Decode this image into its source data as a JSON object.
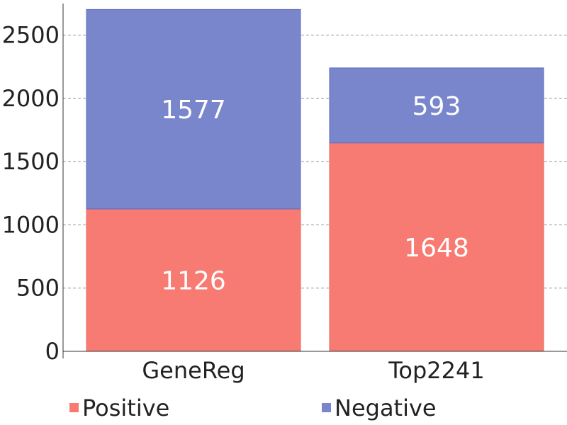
{
  "chart_data": {
    "type": "bar",
    "stacked": true,
    "title": "",
    "xlabel": "",
    "ylabel": "",
    "categories": [
      "GeneReg",
      "Top2241"
    ],
    "series": [
      {
        "name": "Positive",
        "values": [
          1126,
          1648
        ],
        "color": "#f77b72"
      },
      {
        "name": "Negative",
        "values": [
          1577,
          593
        ],
        "color": "#7986cb"
      }
    ],
    "ylim": [
      0,
      2750
    ],
    "yticks": [
      0,
      500,
      1000,
      1500,
      2000,
      2500
    ],
    "ytick_labels": [
      "0",
      "500",
      "1000",
      "1500",
      "2000",
      "2500"
    ],
    "grid": true,
    "legend_position": "bottom"
  }
}
